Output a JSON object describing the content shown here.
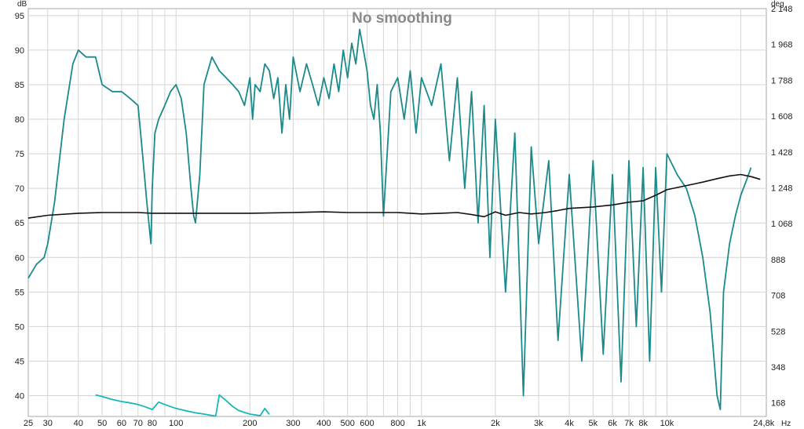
{
  "chart_data": {
    "type": "line",
    "title": "No smoothing",
    "x_scale": "log",
    "xlim": [
      25,
      25400
    ],
    "ylim_left": [
      37,
      96
    ],
    "ylim_right": [
      100,
      2148
    ],
    "left_unit": "dB",
    "right_unit": "deg",
    "x_unit": "Hz",
    "grid": true,
    "x_ticks": [
      {
        "v": 25,
        "label": "25"
      },
      {
        "v": 30,
        "label": "30"
      },
      {
        "v": 40,
        "label": "40"
      },
      {
        "v": 50,
        "label": "50"
      },
      {
        "v": 60,
        "label": "60"
      },
      {
        "v": 70,
        "label": "70"
      },
      {
        "v": 80,
        "label": "80"
      },
      {
        "v": 100,
        "label": "100"
      },
      {
        "v": 200,
        "label": "200"
      },
      {
        "v": 300,
        "label": "300"
      },
      {
        "v": 400,
        "label": "400"
      },
      {
        "v": 500,
        "label": "500"
      },
      {
        "v": 600,
        "label": "600"
      },
      {
        "v": 800,
        "label": "800"
      },
      {
        "v": 1000,
        "label": "1k"
      },
      {
        "v": 2000,
        "label": "2k"
      },
      {
        "v": 3000,
        "label": "3k"
      },
      {
        "v": 4000,
        "label": "4k"
      },
      {
        "v": 5000,
        "label": "5k"
      },
      {
        "v": 6000,
        "label": "6k"
      },
      {
        "v": 7000,
        "label": "7k"
      },
      {
        "v": 8000,
        "label": "8k"
      },
      {
        "v": 10000,
        "label": "10k"
      },
      {
        "v": 24800,
        "label": "24,8k"
      }
    ],
    "y_ticks_left": [
      40,
      45,
      50,
      55,
      60,
      65,
      70,
      75,
      80,
      85,
      90,
      95
    ],
    "y_ticks_right": [
      {
        "v": 168,
        "label": "168"
      },
      {
        "v": 348,
        "label": "348"
      },
      {
        "v": 528,
        "label": "528"
      },
      {
        "v": 708,
        "label": "708"
      },
      {
        "v": 888,
        "label": "888"
      },
      {
        "v": 1068,
        "label": "1 068"
      },
      {
        "v": 1248,
        "label": "1 248"
      },
      {
        "v": 1428,
        "label": "1 428"
      },
      {
        "v": 1608,
        "label": "1 608"
      },
      {
        "v": 1788,
        "label": "1 788"
      },
      {
        "v": 1968,
        "label": "1 968"
      },
      {
        "v": 2148,
        "label": "2 148"
      }
    ],
    "series": [
      {
        "color": "#1b8a8a",
        "axis": "left",
        "x": [
          25,
          27,
          29,
          30,
          32,
          35,
          38,
          40,
          43,
          47,
          50,
          55,
          60,
          65,
          70,
          73,
          76,
          79,
          80,
          82,
          85,
          90,
          95,
          100,
          105,
          110,
          115,
          118,
          120,
          125,
          130,
          140,
          150,
          160,
          170,
          180,
          190,
          200,
          205,
          210,
          220,
          230,
          240,
          250,
          260,
          270,
          280,
          290,
          300,
          320,
          340,
          360,
          380,
          400,
          420,
          440,
          460,
          480,
          500,
          520,
          540,
          560,
          580,
          600,
          620,
          640,
          660,
          680,
          700,
          750,
          800,
          850,
          900,
          950,
          1000,
          1100,
          1200,
          1300,
          1400,
          1500,
          1600,
          1700,
          1800,
          1900,
          2000,
          2200,
          2400,
          2600,
          2800,
          3000,
          3300,
          3600,
          4000,
          4500,
          5000,
          5500,
          6000,
          6500,
          7000,
          7500,
          8000,
          8500,
          9000,
          9500,
          10000,
          11000,
          12000,
          13000,
          14000,
          15000,
          16000,
          16500,
          17000,
          18000,
          19000,
          20000,
          21000,
          22000
        ],
        "y": [
          57,
          59,
          60,
          62,
          68,
          80,
          88,
          90,
          89,
          89,
          85,
          84,
          84,
          83,
          82,
          75,
          68,
          62,
          70,
          78,
          80,
          82,
          84,
          85,
          83,
          78,
          70,
          66,
          65,
          72,
          85,
          89,
          87,
          86,
          85,
          84,
          82,
          86,
          80,
          85,
          84,
          88,
          87,
          83,
          86,
          78,
          85,
          80,
          89,
          84,
          88,
          85,
          82,
          86,
          83,
          88,
          84,
          90,
          86,
          91,
          88,
          93,
          90,
          87,
          82,
          80,
          85,
          78,
          66,
          84,
          86,
          80,
          87,
          78,
          86,
          82,
          88,
          74,
          86,
          70,
          84,
          65,
          82,
          60,
          80,
          55,
          78,
          40,
          76,
          62,
          74,
          48,
          72,
          45,
          74,
          46,
          72,
          42,
          74,
          50,
          73,
          45,
          73,
          55,
          75,
          72,
          70,
          66,
          60,
          52,
          40,
          38,
          55,
          62,
          66,
          69,
          71,
          73
        ]
      },
      {
        "color": "#111111",
        "axis": "left",
        "x": [
          25,
          30,
          40,
          50,
          60,
          70,
          80,
          100,
          150,
          200,
          300,
          400,
          500,
          600,
          700,
          800,
          900,
          1000,
          1200,
          1400,
          1600,
          1800,
          2000,
          2200,
          2500,
          2800,
          3200,
          3600,
          4000,
          5000,
          6000,
          7000,
          8000,
          9000,
          10000,
          12000,
          14000,
          16000,
          18000,
          20000,
          22000,
          24000
        ],
        "y": [
          65.7,
          66.1,
          66.4,
          66.5,
          66.5,
          66.5,
          66.4,
          66.4,
          66.4,
          66.4,
          66.5,
          66.6,
          66.5,
          66.5,
          66.5,
          66.5,
          66.4,
          66.3,
          66.4,
          66.5,
          66.2,
          65.9,
          66.6,
          66.1,
          66.5,
          66.3,
          66.5,
          66.8,
          67.1,
          67.3,
          67.6,
          68.0,
          68.2,
          69.0,
          69.8,
          70.4,
          70.9,
          71.4,
          71.8,
          72.0,
          71.7,
          71.3
        ]
      },
      {
        "color": "#18b8b8",
        "axis": "right",
        "x": [
          47,
          50,
          55,
          60,
          65,
          70,
          75,
          80,
          85,
          90,
          100,
          110,
          120,
          130,
          140,
          145,
          150,
          160,
          170,
          180,
          190,
          200,
          210,
          220,
          230,
          240
        ],
        "y": [
          208,
          200,
          185,
          175,
          168,
          160,
          148,
          135,
          172,
          160,
          140,
          128,
          118,
          112,
          105,
          102,
          208,
          180,
          150,
          130,
          120,
          112,
          108,
          104,
          140,
          110
        ]
      }
    ]
  }
}
